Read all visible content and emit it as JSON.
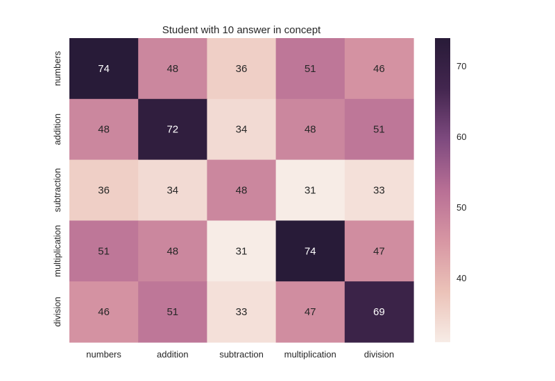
{
  "chart_data": {
    "type": "heatmap",
    "title": "Student with 10 answer in concept",
    "xlabel": "",
    "ylabel": "",
    "x_categories": [
      "numbers",
      "addition",
      "subtraction",
      "multiplication",
      "division"
    ],
    "y_categories": [
      "numbers",
      "addition",
      "subtraction",
      "multiplication",
      "division"
    ],
    "values": [
      [
        74,
        48,
        36,
        51,
        46
      ],
      [
        48,
        72,
        34,
        48,
        51
      ],
      [
        36,
        34,
        48,
        31,
        33
      ],
      [
        51,
        48,
        31,
        74,
        47
      ],
      [
        46,
        51,
        33,
        47,
        69
      ]
    ],
    "annotations": true,
    "colorbar": {
      "ticks": [
        40,
        50,
        60,
        70
      ],
      "range": [
        31,
        74
      ]
    },
    "colormap": [
      "#f7ece6",
      "#ebc2b8",
      "#d796a3",
      "#b86f95",
      "#7e4a7f",
      "#43264f",
      "#281b38"
    ]
  }
}
